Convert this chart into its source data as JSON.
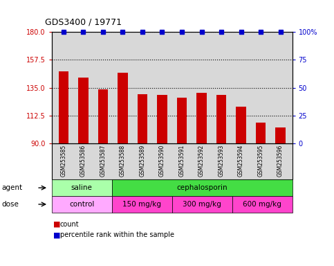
{
  "title": "GDS3400 / 19771",
  "samples": [
    "GSM253585",
    "GSM253586",
    "GSM253587",
    "GSM253588",
    "GSM253589",
    "GSM253590",
    "GSM253591",
    "GSM253592",
    "GSM253593",
    "GSM253594",
    "GSM253595",
    "GSM253596"
  ],
  "bar_values": [
    148,
    143,
    134,
    147,
    130,
    129,
    127,
    131,
    129,
    120,
    107,
    103
  ],
  "percentile_values": [
    100,
    100,
    100,
    100,
    100,
    100,
    100,
    100,
    100,
    100,
    100,
    100
  ],
  "bar_color": "#cc0000",
  "percentile_color": "#0000cc",
  "ylim_left": [
    90,
    180
  ],
  "ylim_right": [
    0,
    100
  ],
  "yticks_left": [
    90,
    112.5,
    135,
    157.5,
    180
  ],
  "yticks_right": [
    0,
    25,
    50,
    75,
    100
  ],
  "ytick_labels_right": [
    "0",
    "25",
    "50",
    "75",
    "100%"
  ],
  "agent_groups": [
    {
      "label": "saline",
      "start": 0,
      "end": 3,
      "color": "#aaffaa"
    },
    {
      "label": "cephalosporin",
      "start": 3,
      "end": 12,
      "color": "#44dd44"
    }
  ],
  "dose_groups": [
    {
      "label": "control",
      "start": 0,
      "end": 3,
      "color": "#ffaaff"
    },
    {
      "label": "150 mg/kg",
      "start": 3,
      "end": 6,
      "color": "#ff44cc"
    },
    {
      "label": "300 mg/kg",
      "start": 6,
      "end": 9,
      "color": "#ff44cc"
    },
    {
      "label": "600 mg/kg",
      "start": 9,
      "end": 12,
      "color": "#ff44cc"
    }
  ],
  "agent_label": "agent",
  "dose_label": "dose",
  "plot_bg_color": "#d8d8d8",
  "xtick_bg_color": "#d8d8d8",
  "tick_color_left": "#cc0000",
  "tick_color_right": "#0000cc"
}
